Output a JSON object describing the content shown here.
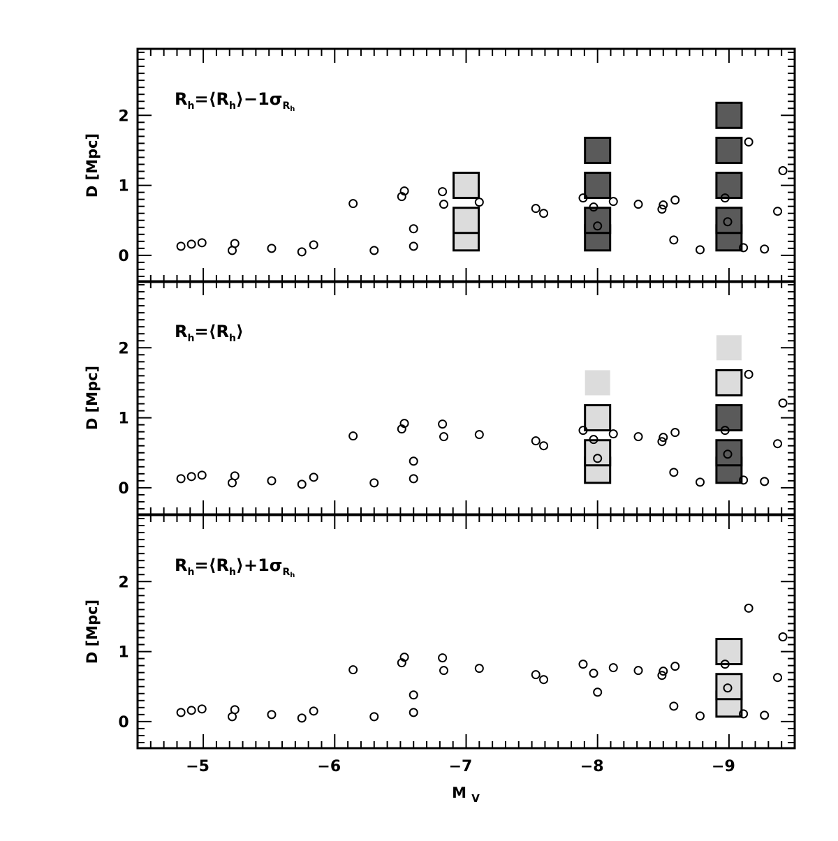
{
  "chart_data": {
    "type": "scatter",
    "shared_x": {
      "label_main": "M",
      "label_sub": "V",
      "lim": [
        -4.5,
        -9.5
      ],
      "ticks": [
        -5,
        -6,
        -7,
        -8,
        -9
      ],
      "tick_labels": [
        "−5",
        "−6",
        "−7",
        "−8",
        "−9"
      ]
    },
    "y_axis": {
      "label": "D [Mpc]",
      "lim": [
        -0.38,
        2.95
      ],
      "ticks": [
        0,
        1,
        2
      ],
      "tick_labels": [
        "0",
        "1",
        "2"
      ]
    },
    "colors": {
      "dark": "#5a5a5a",
      "light": "#dcdcdc",
      "faint": "#dcdcdc"
    },
    "observed_points": [
      {
        "x": -4.83,
        "y": 0.13
      },
      {
        "x": -4.91,
        "y": 0.16
      },
      {
        "x": -4.99,
        "y": 0.18
      },
      {
        "x": -5.22,
        "y": 0.07
      },
      {
        "x": -5.24,
        "y": 0.17
      },
      {
        "x": -5.52,
        "y": 0.1
      },
      {
        "x": -5.75,
        "y": 0.05
      },
      {
        "x": -5.84,
        "y": 0.15
      },
      {
        "x": -6.14,
        "y": 0.74
      },
      {
        "x": -6.3,
        "y": 0.07
      },
      {
        "x": -6.51,
        "y": 0.84
      },
      {
        "x": -6.53,
        "y": 0.92
      },
      {
        "x": -6.6,
        "y": 0.38
      },
      {
        "x": -6.6,
        "y": 0.13
      },
      {
        "x": -6.82,
        "y": 0.91
      },
      {
        "x": -6.83,
        "y": 0.73
      },
      {
        "x": -7.1,
        "y": 0.76
      },
      {
        "x": -7.53,
        "y": 0.67
      },
      {
        "x": -7.59,
        "y": 0.6
      },
      {
        "x": -7.89,
        "y": 0.82
      },
      {
        "x": -7.97,
        "y": 0.69
      },
      {
        "x": -8.0,
        "y": 0.42
      },
      {
        "x": -8.12,
        "y": 0.77
      },
      {
        "x": -8.31,
        "y": 0.73
      },
      {
        "x": -8.5,
        "y": 0.72
      },
      {
        "x": -8.49,
        "y": 0.66
      },
      {
        "x": -8.59,
        "y": 0.79
      },
      {
        "x": -8.58,
        "y": 0.22
      },
      {
        "x": -8.78,
        "y": 0.08
      },
      {
        "x": -8.97,
        "y": 0.82
      },
      {
        "x": -8.99,
        "y": 0.48
      },
      {
        "x": -9.15,
        "y": 1.62
      },
      {
        "x": -9.11,
        "y": 0.11
      },
      {
        "x": -9.27,
        "y": 0.09
      },
      {
        "x": -9.41,
        "y": 1.21
      },
      {
        "x": -9.37,
        "y": 0.63
      }
    ],
    "panels": [
      {
        "label": {
          "lhs": "R",
          "lhs_sub": "h",
          "rel": "=⟨R",
          "rel_sub": "h",
          "close": "⟩",
          "extra": "−1σ",
          "extra_sub": "R",
          "extra_subsub": "h"
        },
        "squares": [
          {
            "x": -7,
            "y": 1.0,
            "fill": "light"
          },
          {
            "x": -7,
            "y": 0.25,
            "fill": "light"
          },
          {
            "x": -7,
            "y": 0.5,
            "fill": "light"
          },
          {
            "x": -8,
            "y": 1.5,
            "fill": "dark"
          },
          {
            "x": -8,
            "y": 1.0,
            "fill": "dark"
          },
          {
            "x": -8,
            "y": 0.25,
            "fill": "dark"
          },
          {
            "x": -8,
            "y": 0.5,
            "fill": "dark"
          },
          {
            "x": -9,
            "y": 2.0,
            "fill": "dark"
          },
          {
            "x": -9,
            "y": 1.5,
            "fill": "dark"
          },
          {
            "x": -9,
            "y": 1.0,
            "fill": "dark"
          },
          {
            "x": -9,
            "y": 0.25,
            "fill": "dark"
          },
          {
            "x": -9,
            "y": 0.5,
            "fill": "dark"
          }
        ]
      },
      {
        "label": {
          "lhs": "R",
          "lhs_sub": "h",
          "rel": "=⟨R",
          "rel_sub": "h",
          "close": "⟩",
          "extra": "",
          "extra_sub": "",
          "extra_subsub": ""
        },
        "squares": [
          {
            "x": -8,
            "y": 1.5,
            "fill": "faint"
          },
          {
            "x": -8,
            "y": 1.0,
            "fill": "light"
          },
          {
            "x": -8,
            "y": 0.25,
            "fill": "light"
          },
          {
            "x": -8,
            "y": 0.5,
            "fill": "light"
          },
          {
            "x": -9,
            "y": 2.0,
            "fill": "faint"
          },
          {
            "x": -9,
            "y": 1.5,
            "fill": "light"
          },
          {
            "x": -9,
            "y": 1.0,
            "fill": "dark"
          },
          {
            "x": -9,
            "y": 0.25,
            "fill": "dark"
          },
          {
            "x": -9,
            "y": 0.5,
            "fill": "dark"
          }
        ]
      },
      {
        "label": {
          "lhs": "R",
          "lhs_sub": "h",
          "rel": "=⟨R",
          "rel_sub": "h",
          "close": "⟩",
          "extra": "+1σ",
          "extra_sub": "R",
          "extra_subsub": "h"
        },
        "squares": [
          {
            "x": -9,
            "y": 1.0,
            "fill": "light"
          },
          {
            "x": -9,
            "y": 0.25,
            "fill": "light"
          },
          {
            "x": -9,
            "y": 0.5,
            "fill": "light"
          }
        ]
      }
    ]
  }
}
